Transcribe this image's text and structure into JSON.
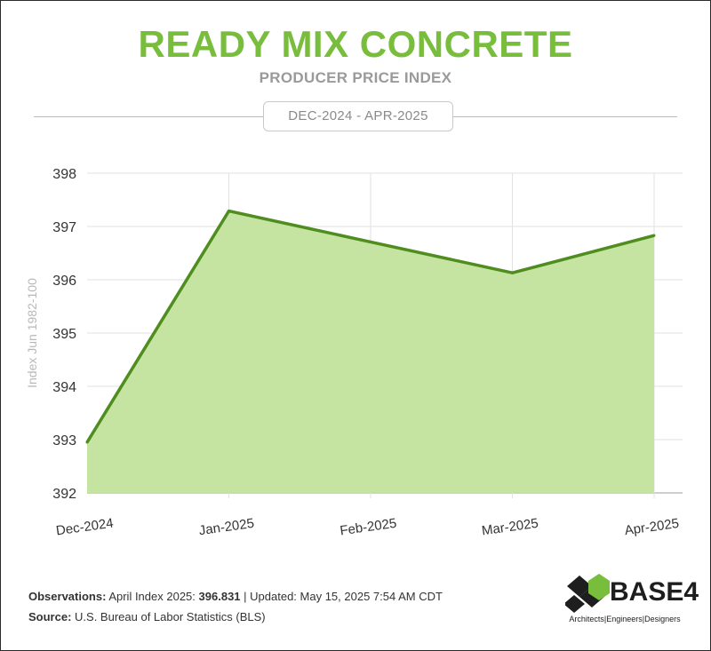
{
  "header": {
    "title": "READY MIX CONCRETE",
    "subtitle": "PRODUCER PRICE INDEX",
    "date_range": "DEC-2024 - APR-2025"
  },
  "chart_data": {
    "type": "area",
    "categories": [
      "Dec-2024",
      "Jan-2025",
      "Feb-2025",
      "Mar-2025",
      "Apr-2025"
    ],
    "series": [
      {
        "values": [
          392.95,
          397.29,
          396.71,
          396.13,
          396.831
        ]
      }
    ],
    "ylabel": "Index Jun 1982-100",
    "ylim": [
      392,
      398
    ],
    "yticks": [
      "392",
      "393",
      "394",
      "395",
      "396",
      "397",
      "398"
    ],
    "grid": true,
    "line_color": "#4f8d1f",
    "fill_color": "#c5e3a1"
  },
  "footer": {
    "observations_label": "Observations:",
    "observations_text": "April Index 2025:",
    "observations_value": "396.831",
    "updated_text": "| Updated: May 15, 2025 7:54 AM CDT",
    "source_label": "Source:",
    "source_text": "U.S. Bureau of Labor Statistics (BLS)"
  },
  "logo": {
    "name": "BASE4",
    "tagline": "Architects|Engineers|Designers",
    "colors": [
      "#79bd3d",
      "#1e1e1e"
    ]
  }
}
